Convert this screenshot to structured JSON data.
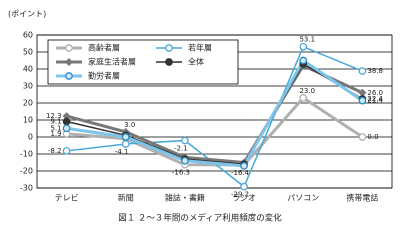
{
  "chart_data": {
    "type": "line",
    "y_label": "(ポイント)",
    "caption": "図１ ２～３年間のメディア利用頻度の変化",
    "categories": [
      "テレビ",
      "新聞",
      "雑誌・書籍",
      "ラジオ",
      "パソコン",
      "携帯電話"
    ],
    "series": [
      {
        "name": "高齢者層",
        "color": "#b0b0b0",
        "marker": "open-circle",
        "width": 3,
        "values": [
          1.9,
          -1,
          -16.3,
          -16.4,
          23.0,
          0.0
        ],
        "value_labels": [
          "1.9",
          null,
          "-16.3",
          "-16.4",
          "23.0",
          "0.0"
        ]
      },
      {
        "name": "若年層",
        "color": "#4aa8d8",
        "marker": "open-circle",
        "width": 1.5,
        "values": [
          -8.2,
          -4.1,
          -2.1,
          -29.2,
          53.1,
          38.8
        ],
        "value_labels": [
          "-8.2",
          "-4.1",
          "-2.1",
          "-29.2",
          "53.1",
          "38.8"
        ]
      },
      {
        "name": "家庭生活者層",
        "color": "#777777",
        "marker": "diamond",
        "width": 3,
        "values": [
          12.3,
          3.0,
          -12,
          -15,
          42,
          26.0
        ],
        "value_labels": [
          "12.3",
          "3.0",
          null,
          null,
          null,
          "26.0"
        ]
      },
      {
        "name": "全体",
        "color": "#333333",
        "marker": "circle",
        "width": 1.5,
        "values": [
          9.1,
          1,
          -13,
          -16,
          43,
          22.4
        ],
        "value_labels": [
          "9.1",
          null,
          null,
          null,
          null,
          "22.4"
        ]
      },
      {
        "name": "勤労者層",
        "color": "#7cc4ea",
        "marker": "blue-circle",
        "width": 3,
        "values": [
          5.1,
          0,
          -14,
          -17,
          45,
          21.4
        ],
        "value_labels": [
          "5.1",
          null,
          null,
          null,
          null,
          "21.4"
        ]
      }
    ],
    "ylim": [
      -30,
      60
    ],
    "yticks": [
      -30,
      -20,
      -10,
      0,
      10,
      20,
      30,
      40,
      50,
      60
    ],
    "grid": true
  }
}
